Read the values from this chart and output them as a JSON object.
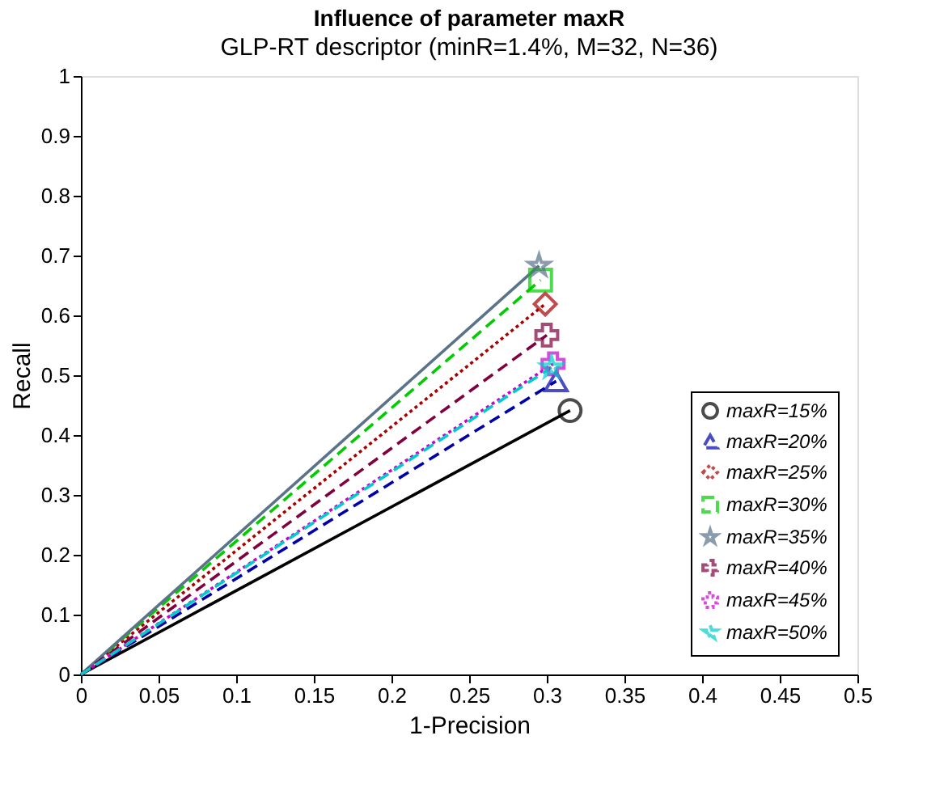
{
  "chart_data": {
    "type": "line",
    "title": "Influence of parameter maxR",
    "xlabel": "1-Precision",
    "ylabel": "Recall",
    "annotations": [
      "GLP-RT descriptor (minR=1.4%, M=32, N=36)"
    ],
    "xlim": [
      0,
      0.5
    ],
    "xticks": [
      0,
      0.05,
      0.1,
      0.15,
      0.2,
      0.25,
      0.3,
      0.35,
      0.4,
      0.45,
      0.5
    ],
    "ylim": [
      0,
      1
    ],
    "yticks": [
      0,
      0.1,
      0.2,
      0.3,
      0.4,
      0.5,
      0.6,
      0.7,
      0.8,
      0.9,
      1
    ],
    "grid": false,
    "legend": "bottom right",
    "series": [
      {
        "name": "maxR=15%",
        "color": "#000000",
        "x": [
          0,
          0.315
        ],
        "values": [
          0,
          0.441
        ],
        "marker": "circle",
        "line_style": "solid"
      },
      {
        "name": "maxR=20%",
        "color": "#0000aa",
        "x": [
          0,
          0.306
        ],
        "values": [
          0,
          0.49
        ],
        "marker": "triangle",
        "line_style": "dashed"
      },
      {
        "name": "maxR=25%",
        "color": "#aa0000",
        "x": [
          0,
          0.299
        ],
        "values": [
          0,
          0.619
        ],
        "marker": "diamond",
        "line_style": "dotted"
      },
      {
        "name": "maxR=30%",
        "color": "#00cc00",
        "x": [
          0,
          0.296
        ],
        "values": [
          0,
          0.659
        ],
        "marker": "square",
        "line_style": "dashed"
      },
      {
        "name": "maxR=35%",
        "color": "#5a7388",
        "x": [
          0,
          0.295
        ],
        "values": [
          0,
          0.683
        ],
        "marker": "star",
        "line_style": "solid"
      },
      {
        "name": "maxR=40%",
        "color": "#800040",
        "x": [
          0,
          0.3
        ],
        "values": [
          0,
          0.567
        ],
        "marker": "cross",
        "line_style": "dashed"
      },
      {
        "name": "maxR=45%",
        "color": "#cc00cc",
        "x": [
          0,
          0.304
        ],
        "values": [
          0,
          0.519
        ],
        "marker": "cross",
        "line_style": "dotted"
      },
      {
        "name": "maxR=50%",
        "color": "#00cccc",
        "x": [
          0,
          0.303
        ],
        "values": [
          0,
          0.513
        ],
        "marker": "star",
        "line_style": "dashed"
      }
    ]
  }
}
